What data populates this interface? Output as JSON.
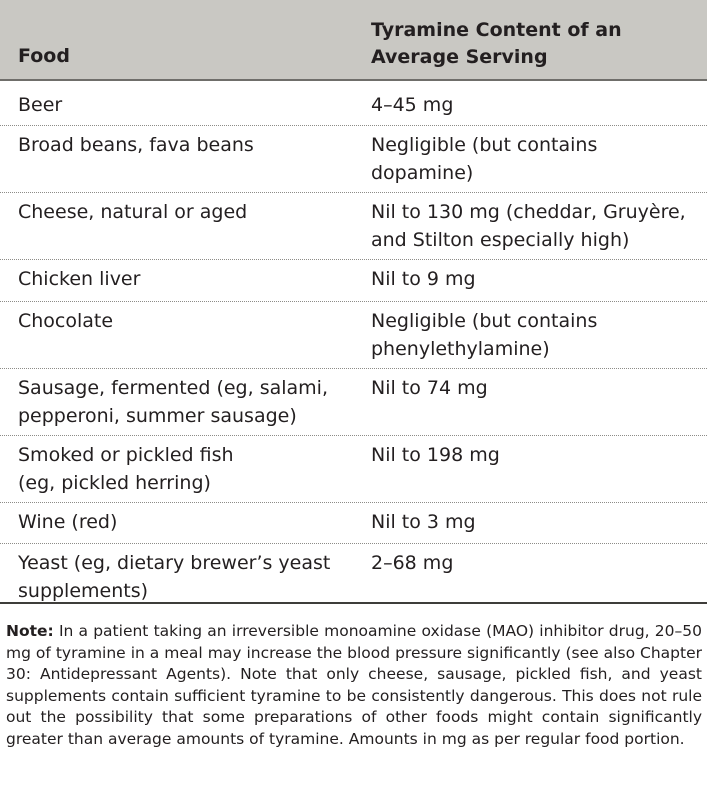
{
  "table": {
    "headers": {
      "food": "Food",
      "tyramine_line1": "Tyramine Content of an",
      "tyramine_line2": "Average Serving"
    },
    "rows": [
      {
        "food": [
          "Beer"
        ],
        "tyramine": [
          "4–45 mg"
        ]
      },
      {
        "food": [
          "Broad beans, fava beans"
        ],
        "tyramine": [
          "Negligible (but contains",
          "dopamine)"
        ]
      },
      {
        "food": [
          "Cheese, natural or aged"
        ],
        "tyramine": [
          "Nil to 130 mg (cheddar, Gruyère,",
          "and Stilton especially high)"
        ]
      },
      {
        "food": [
          "Chicken liver"
        ],
        "tyramine": [
          "Nil to 9 mg"
        ]
      },
      {
        "food": [
          "Chocolate"
        ],
        "tyramine": [
          "Negligible (but contains",
          "phenylethylamine)"
        ]
      },
      {
        "food": [
          "Sausage, fermented (eg, salami,",
          "pepperoni, summer sausage)"
        ],
        "tyramine": [
          "Nil to 74 mg"
        ]
      },
      {
        "food": [
          "Smoked or pickled fish",
          "(eg, pickled herring)"
        ],
        "tyramine": [
          "Nil to 198 mg"
        ]
      },
      {
        "food": [
          "Wine (red)"
        ],
        "tyramine": [
          "Nil to 3 mg"
        ]
      },
      {
        "food": [
          "Yeast (eg, dietary brewer’s yeast",
          "supplements)"
        ],
        "tyramine": [
          "2–68 mg"
        ]
      }
    ]
  },
  "note": {
    "label": "Note:",
    "text": " In a patient taking an irreversible monoamine oxidase (MAO) inhibitor drug, 20–50 mg of tyramine in a meal may increase the blood pressure significantly (see also Chapter 30: Antidepressant Agents). Note that only cheese, sausage, pickled fish, and yeast supplements contain sufficient tyramine to be consistently dangerous. This does not rule out the possibility that some preparations of other foods might contain significantly greater than average amounts of tyramine. Amounts in mg as per regular food portion."
  },
  "colors": {
    "header_bg": "#c9c8c3",
    "text": "#231f20"
  }
}
